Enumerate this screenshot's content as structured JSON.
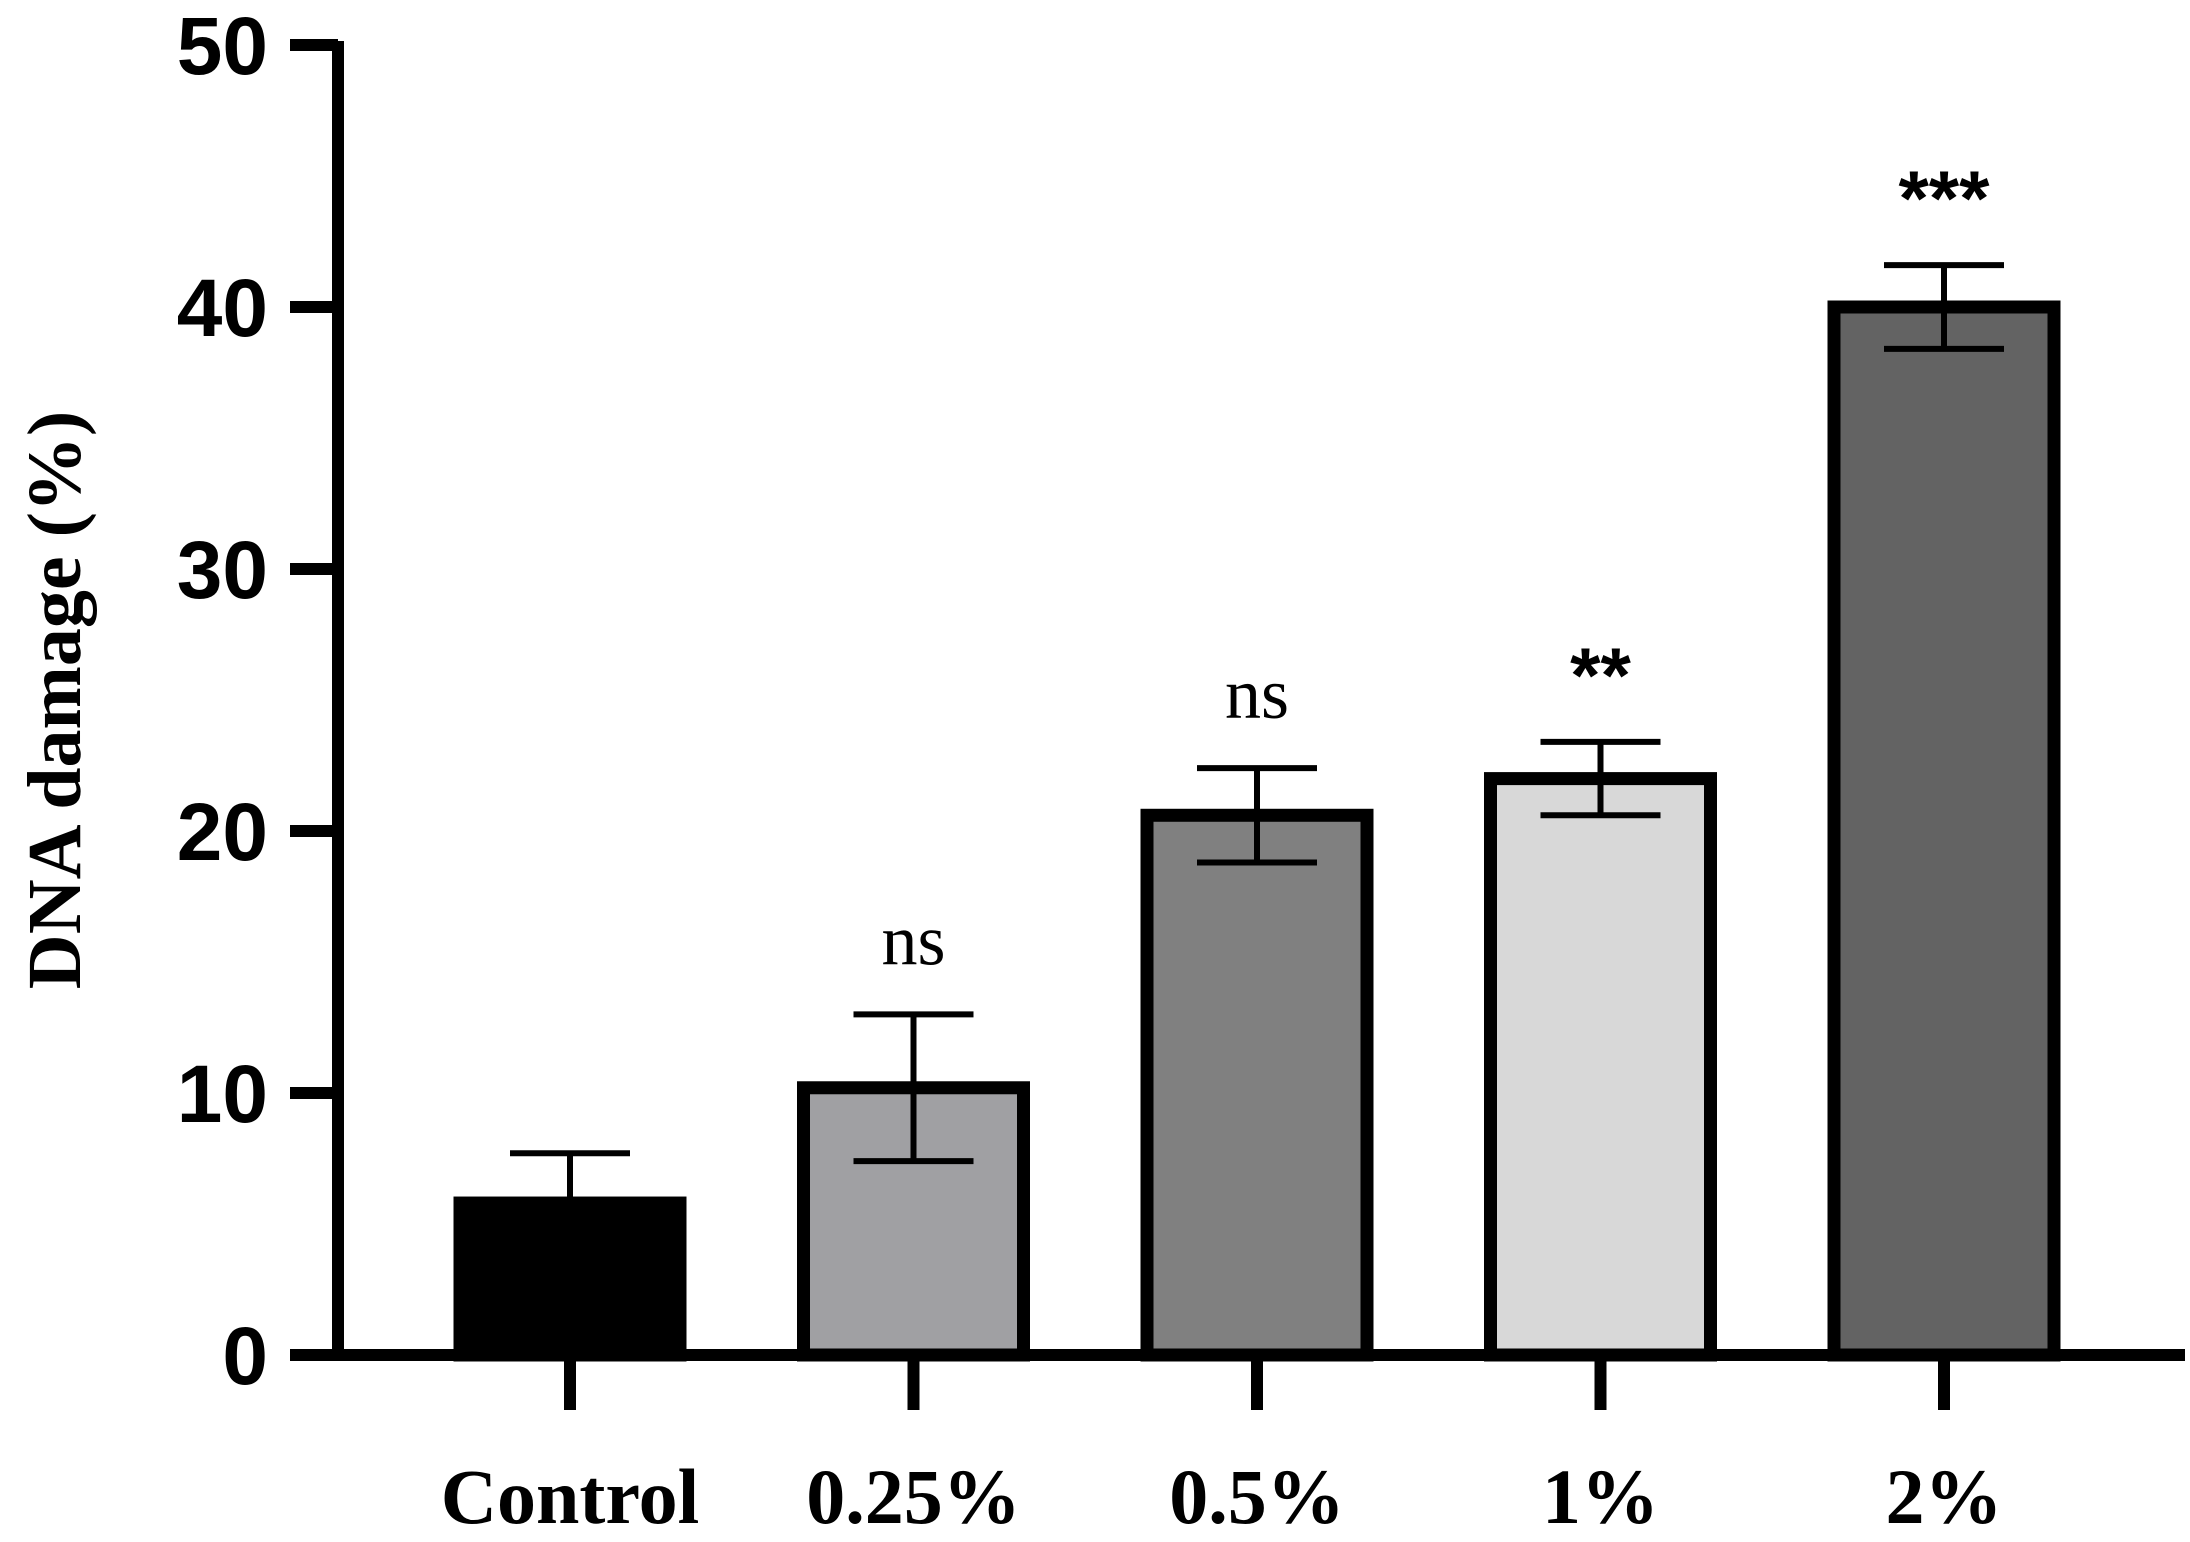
{
  "chart_data": {
    "type": "bar",
    "title": "",
    "xlabel": "",
    "ylabel": "DNA damage (%)",
    "ylim": [
      0,
      50
    ],
    "yticks": [
      0,
      10,
      20,
      30,
      40,
      50
    ],
    "grid": false,
    "categories": [
      "Control",
      "0.25%",
      "0.5%",
      "1%",
      "2%"
    ],
    "values": [
      5.8,
      10.2,
      20.6,
      22.0,
      40.0
    ],
    "errors": [
      1.9,
      2.8,
      1.8,
      1.4,
      1.6
    ],
    "significance": [
      "",
      "ns",
      "ns",
      "**",
      "***"
    ],
    "colors": [
      "#000000",
      "#a0a0a3",
      "#808080",
      "#d8d8d8",
      "#636363"
    ],
    "edge_color": "#000000"
  }
}
